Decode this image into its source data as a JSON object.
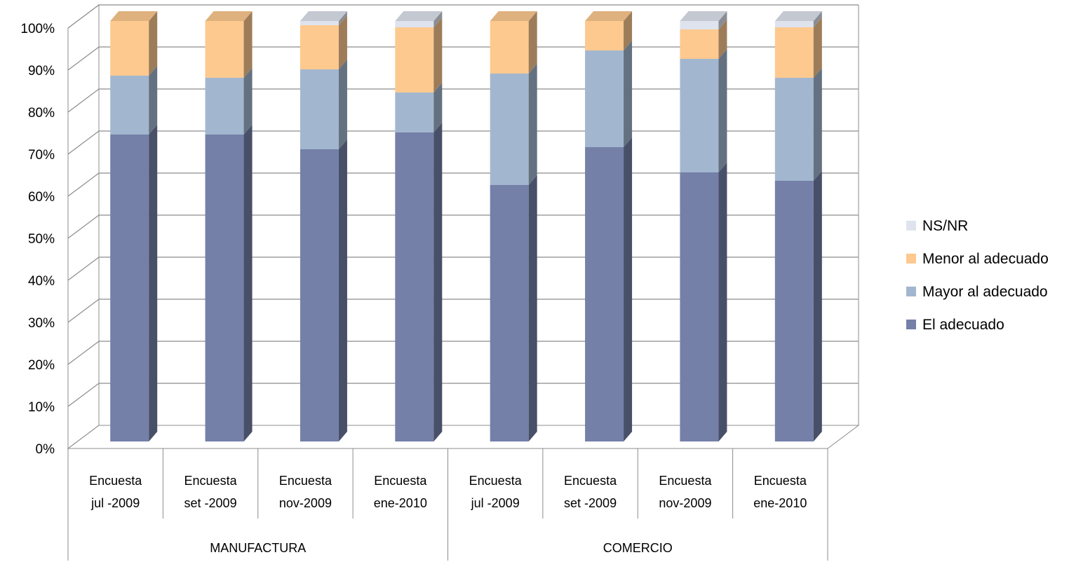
{
  "chart_data": {
    "type": "bar",
    "stacked": true,
    "percent": true,
    "three_d": true,
    "title": "",
    "xlabel": "",
    "ylabel": "",
    "ylim": [
      0,
      100
    ],
    "y_ticks": [
      "0%",
      "10%",
      "20%",
      "30%",
      "40%",
      "50%",
      "60%",
      "70%",
      "80%",
      "90%",
      "100%"
    ],
    "grid": true,
    "legend_position": "right",
    "groups": [
      {
        "name": "MANUFACTURA",
        "categories": [
          "Encuesta jul -2009",
          "Encuesta set -2009",
          "Encuesta nov-2009",
          "Encuesta ene-2010"
        ]
      },
      {
        "name": "COMERCIO",
        "categories": [
          "Encuesta jul -2009",
          "Encuesta set -2009",
          "Encuesta nov-2009",
          "Encuesta ene-2010"
        ]
      }
    ],
    "categories": [
      [
        "Encuesta",
        "jul -2009"
      ],
      [
        "Encuesta",
        "set -2009"
      ],
      [
        "Encuesta",
        "nov-2009"
      ],
      [
        "Encuesta",
        "ene-2010"
      ],
      [
        "Encuesta",
        "jul -2009"
      ],
      [
        "Encuesta",
        "set -2009"
      ],
      [
        "Encuesta",
        "nov-2009"
      ],
      [
        "Encuesta",
        "ene-2010"
      ]
    ],
    "series": [
      {
        "name": "El adecuado",
        "color": "#7480a8",
        "values": [
          73,
          73,
          69.5,
          73.5,
          61,
          70,
          64,
          62
        ]
      },
      {
        "name": "Mayor al adecuado",
        "color": "#a2b7cf",
        "values": [
          14,
          13.5,
          19,
          9.5,
          26.5,
          23,
          27,
          24.5
        ]
      },
      {
        "name": "Menor al  adecuado",
        "color": "#fdc98f",
        "values": [
          13,
          13.5,
          10.5,
          15.5,
          12.5,
          7,
          7,
          12
        ]
      },
      {
        "name": "NS/NR",
        "color": "#dfe3ee",
        "values": [
          0,
          0,
          1,
          1.5,
          0,
          0,
          2,
          1.5
        ]
      }
    ]
  }
}
